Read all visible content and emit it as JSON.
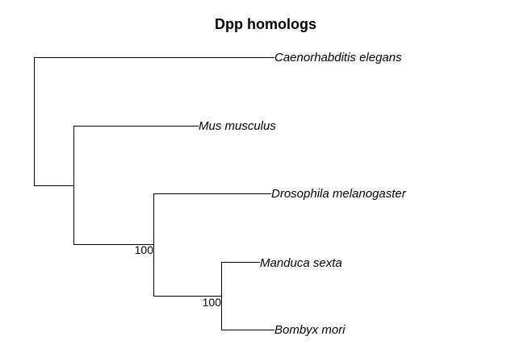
{
  "title": "Dpp homologs",
  "taxa": [
    "Caenorhabditis elegans",
    "Mus musculus",
    "Drosophila melanogaster",
    "Manduca sexta",
    "Bombyx mori"
  ],
  "support_values": [
    "100",
    "100"
  ],
  "newick": "(Caenorhabditis elegans,(Mus musculus,(Drosophila melanogaster,(Manduca sexta,Bombyx mori)100)100));"
}
